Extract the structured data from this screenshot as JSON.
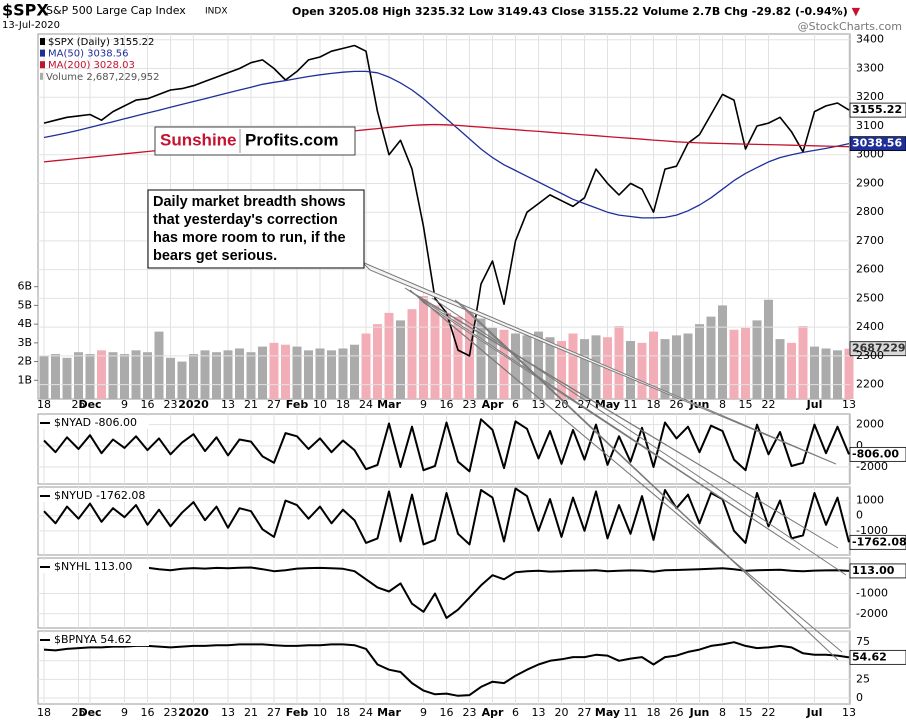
{
  "header": {
    "symbol": "$SPX",
    "name": "S&P 500 Large Cap Index",
    "exchange": "INDX",
    "date": "13-Jul-2020",
    "quote": [
      {
        "label": "Open",
        "value": "3205.08"
      },
      {
        "label": "High",
        "value": "3235.32"
      },
      {
        "label": "Low",
        "value": "3149.43"
      },
      {
        "label": "Close",
        "value": "3155.22"
      },
      {
        "label": "Volume",
        "value": "2.7B"
      },
      {
        "label": "Chg",
        "value": "-29.82 (-0.94%)"
      }
    ],
    "change_arrow": "▼",
    "watermark": "@StockCharts.com"
  },
  "logo": {
    "left": "Sunshine",
    "right": "Profits.com"
  },
  "annotation": {
    "lines": [
      "Daily market breadth shows",
      "that yesterday's correction",
      "has more room to run, if the",
      "bears get serious."
    ]
  },
  "chart_data": [
    {
      "type": "line",
      "legend": true,
      "categories": [
        "18",
        null,
        null,
        "25",
        "Dec",
        null,
        null,
        "9",
        null,
        "16",
        null,
        "23",
        null,
        "2020",
        null,
        null,
        "13",
        null,
        "21",
        null,
        "27",
        null,
        "Feb",
        null,
        "10",
        null,
        "18",
        null,
        "24",
        null,
        "Mar",
        null,
        null,
        "9",
        null,
        "16",
        null,
        "23",
        null,
        "Apr",
        null,
        "6",
        null,
        "13",
        null,
        "20",
        null,
        "27",
        null,
        "May",
        null,
        "11",
        null,
        "18",
        null,
        "26",
        null,
        "Jun",
        null,
        "8",
        null,
        "15",
        null,
        "22",
        null,
        null,
        null,
        "Jul",
        null,
        null,
        "13"
      ],
      "ylim": [
        2150,
        3420
      ],
      "yticks": [
        2200,
        2300,
        2400,
        2500,
        2600,
        2700,
        2800,
        2900,
        3000,
        3100,
        3200,
        3300,
        3400
      ],
      "series": [
        {
          "name": "$SPX (Daily) 3155.22",
          "color": "#000000",
          "end_label": "3155.22",
          "values": [
            3110,
            3120,
            3130,
            3135,
            3140,
            3120,
            3150,
            3170,
            3190,
            3195,
            3210,
            3225,
            3230,
            3240,
            3255,
            3270,
            3285,
            3300,
            3320,
            3330,
            3300,
            3260,
            3290,
            3330,
            3340,
            3360,
            3370,
            3380,
            3360,
            3150,
            3000,
            3050,
            2950,
            2750,
            2500,
            2450,
            2320,
            2300,
            2550,
            2630,
            2480,
            2700,
            2800,
            2830,
            2860,
            2840,
            2820,
            2850,
            2950,
            2900,
            2860,
            2900,
            2880,
            2800,
            2950,
            2960,
            3040,
            3070,
            3140,
            3210,
            3190,
            3020,
            3100,
            3110,
            3130,
            3080,
            3010,
            3150,
            3170,
            3180,
            3155.22
          ]
        },
        {
          "name": "MA(50) 3038.56",
          "color": "#1f2f9a",
          "end_label": "3038.56",
          "values": [
            3060,
            3068,
            3076,
            3085,
            3095,
            3105,
            3115,
            3125,
            3135,
            3145,
            3155,
            3165,
            3175,
            3185,
            3195,
            3205,
            3215,
            3225,
            3235,
            3245,
            3252,
            3258,
            3265,
            3272,
            3278,
            3283,
            3287,
            3290,
            3290,
            3285,
            3270,
            3250,
            3225,
            3195,
            3160,
            3125,
            3090,
            3055,
            3020,
            2990,
            2965,
            2945,
            2925,
            2905,
            2885,
            2865,
            2845,
            2830,
            2815,
            2800,
            2790,
            2785,
            2780,
            2780,
            2782,
            2790,
            2805,
            2825,
            2850,
            2880,
            2910,
            2935,
            2955,
            2975,
            2990,
            3000,
            3008,
            3015,
            3022,
            3030,
            3038.56
          ]
        },
        {
          "name": "MA(200) 3028.03",
          "color": "#c4122f",
          "values": [
            2975,
            2979,
            2983,
            2987,
            2991,
            2995,
            2999,
            3003,
            3007,
            3011,
            3015,
            3019,
            3023,
            3027,
            3031,
            3035,
            3039,
            3043,
            3047,
            3051,
            3055,
            3059,
            3063,
            3067,
            3071,
            3075,
            3079,
            3083,
            3087,
            3091,
            3095,
            3099,
            3102,
            3104,
            3105,
            3104,
            3102,
            3099,
            3096,
            3093,
            3090,
            3087,
            3084,
            3081,
            3078,
            3075,
            3072,
            3069,
            3066,
            3063,
            3060,
            3057,
            3054,
            3051,
            3048,
            3045,
            3043,
            3041,
            3040,
            3039,
            3038,
            3037,
            3036,
            3035,
            3034,
            3033,
            3032,
            3031,
            3030,
            3029,
            3028.03
          ]
        }
      ]
    },
    {
      "type": "bar",
      "name": "Volume 2,687,229,952",
      "color": "#555555",
      "up_color": "#ababab",
      "down_color": "#f2adb6",
      "end_label": "2687229952",
      "ylim": [
        0,
        19500000000
      ],
      "yticks": [
        {
          "value": 1000000000,
          "label": "1B"
        },
        {
          "value": 2000000000,
          "label": "2B"
        },
        {
          "value": 3000000000,
          "label": "3B"
        },
        {
          "value": 4000000000,
          "label": "4B"
        },
        {
          "value": 5000000000,
          "label": "5B"
        },
        {
          "value": 6000000000,
          "label": "6B"
        }
      ],
      "values": [
        2300000000.0,
        2400000000.0,
        2200000000.0,
        2500000000.0,
        2400000000.0,
        2600000000.0,
        2500000000.0,
        2400000000.0,
        2600000000.0,
        2500000000.0,
        3600000000.0,
        2200000000.0,
        2000000000.0,
        2400000000.0,
        2600000000.0,
        2500000000.0,
        2600000000.0,
        2700000000.0,
        2500000000.0,
        2800000000.0,
        3000000000.0,
        2900000000.0,
        2800000000.0,
        2600000000.0,
        2700000000.0,
        2600000000.0,
        2700000000.0,
        2900000000.0,
        3500000000.0,
        4000000000.0,
        4600000000.0,
        4200000000.0,
        4800000000.0,
        5500000000.0,
        5000000000.0,
        4600000000.0,
        4400000000.0,
        4800000000.0,
        4300000000.0,
        3800000000.0,
        3700000000.0,
        3500000000.0,
        3400000000.0,
        3600000000.0,
        3300000000.0,
        3100000000.0,
        3500000000.0,
        3200000000.0,
        3400000000.0,
        3300000000.0,
        3900000000.0,
        3100000000.0,
        3000000000.0,
        3600000000.0,
        3200000000.0,
        3400000000.0,
        3500000000.0,
        4000000000.0,
        4400000000.0,
        5000000000.0,
        3700000000.0,
        3800000000.0,
        4200000000.0,
        5300000000.0,
        3200000000.0,
        3000000000.0,
        3900000000.0,
        2800000000.0,
        2700000000.0,
        2600000000.0,
        2687229952
      ]
    },
    {
      "type": "line",
      "ylim": [
        -3600,
        3000
      ],
      "yticks": [
        2000,
        0,
        -2000
      ],
      "series": [
        {
          "name": "$NYAD -806.00",
          "color": "#000000",
          "end_label": "-806.00",
          "values": [
            500,
            -600,
            800,
            -300,
            1000,
            -700,
            600,
            -200,
            900,
            -400,
            700,
            -800,
            300,
            1100,
            -500,
            800,
            -900,
            600,
            400,
            -1000,
            -1600,
            1200,
            900,
            -300,
            700,
            -600,
            500,
            -400,
            -2200,
            -1800,
            2100,
            -2000,
            1800,
            -2300,
            -1900,
            2200,
            -1500,
            -2400,
            2500,
            1500,
            -2100,
            2300,
            1600,
            -1200,
            1400,
            -1700,
            1500,
            -1300,
            2000,
            -1800,
            900,
            -1500,
            1700,
            -2000,
            2200,
            700,
            1800,
            -600,
            1900,
            1400,
            -1300,
            -2300,
            2000,
            -800,
            1300,
            -1900,
            -1600,
            2000,
            -700,
            1800,
            -806
          ]
        }
      ]
    },
    {
      "type": "line",
      "ylim": [
        -2600,
        1900
      ],
      "yticks": [
        1000,
        0,
        -1000
      ],
      "series": [
        {
          "name": "$NYUD -1762.08",
          "color": "#000000",
          "end_label": "-1762.08",
          "values": [
            300,
            -500,
            600,
            -200,
            800,
            -400,
            500,
            -100,
            700,
            -600,
            400,
            -700,
            200,
            900,
            -300,
            600,
            -800,
            500,
            300,
            -900,
            -1400,
            1000,
            700,
            -200,
            600,
            -500,
            400,
            -300,
            -1800,
            -1500,
            1600,
            -1700,
            1400,
            -1900,
            -1600,
            1500,
            -1200,
            -1900,
            1700,
            1200,
            -1700,
            1800,
            1300,
            -1000,
            1100,
            -1400,
            1200,
            -1000,
            1600,
            -1500,
            700,
            -1200,
            1300,
            -1600,
            1700,
            500,
            1400,
            -500,
            1500,
            1100,
            -1000,
            -1800,
            1500,
            -700,
            1000,
            -1500,
            -1300,
            1500,
            -600,
            1200,
            -1762.08
          ]
        }
      ]
    },
    {
      "type": "line",
      "ylim": [
        -2700,
        750
      ],
      "yticks": [
        -1000,
        -2000
      ],
      "series": [
        {
          "name": "$NYHL 113.00",
          "color": "#000000",
          "end_label": "113.00",
          "values": [
            150,
            200,
            180,
            220,
            250,
            200,
            230,
            260,
            240,
            270,
            200,
            150,
            220,
            250,
            230,
            260,
            240,
            270,
            280,
            200,
            100,
            150,
            230,
            250,
            260,
            240,
            220,
            100,
            -300,
            -700,
            -900,
            -500,
            -1500,
            -1900,
            -1000,
            -2200,
            -1800,
            -1200,
            -600,
            -100,
            -300,
            50,
            100,
            120,
            80,
            100,
            120,
            130,
            150,
            100,
            120,
            140,
            130,
            80,
            150,
            160,
            180,
            200,
            220,
            240,
            200,
            120,
            150,
            160,
            170,
            120,
            100,
            130,
            140,
            150,
            113
          ]
        }
      ]
    },
    {
      "type": "line",
      "ylim": [
        -8,
        90
      ],
      "yticks": [
        75,
        50,
        25,
        0
      ],
      "series": [
        {
          "name": "$BPNYA 54.62",
          "color": "#000000",
          "end_label": "54.62",
          "values": [
            65,
            64,
            66,
            67,
            68,
            68,
            69,
            69,
            70,
            70,
            69,
            68,
            69,
            70,
            70,
            71,
            71,
            72,
            72,
            72,
            71,
            70,
            70,
            71,
            71,
            72,
            72,
            71,
            66,
            45,
            38,
            35,
            20,
            10,
            5,
            6,
            3,
            4,
            15,
            22,
            20,
            30,
            38,
            45,
            50,
            52,
            55,
            55,
            58,
            57,
            50,
            53,
            55,
            45,
            55,
            57,
            62,
            65,
            70,
            72,
            75,
            70,
            67,
            68,
            70,
            68,
            60,
            58,
            58,
            57,
            54.62
          ]
        }
      ]
    }
  ]
}
